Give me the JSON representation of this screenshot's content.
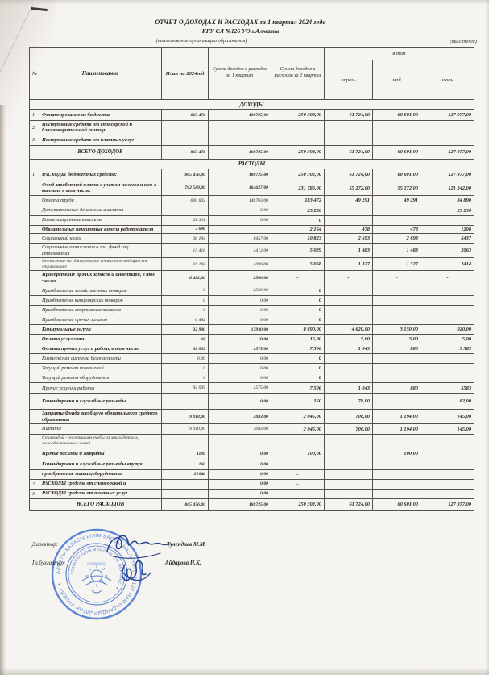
{
  "header": {
    "title": "ОТЧЕТ О ДОХОДАХ И РАСХОДАХ за 1 квартал 2024 года",
    "org": "КГУ СЛ №126 УО г.Алматы",
    "org_caption": "(наименование организации образования)",
    "units_note": "(тыс.тенге)"
  },
  "colors": {
    "paper": "#f6f4f0",
    "ink": "#26241f",
    "stamp_blue": "#4677cf",
    "signature_ink": "#27418e"
  },
  "table": {
    "columns": {
      "num": "№",
      "name": "Наименование",
      "plan": "План на 2024год",
      "q1": "Сумма доходов и расходов за  1 квартал",
      "q2": "Сумма доходов и расходов за  2 квартал",
      "group": "в том",
      "months": [
        "апрель",
        "май",
        "июнь"
      ]
    },
    "rows": [
      {
        "section": "ДОХОДЫ"
      },
      {
        "n": "1",
        "label": "Финансирование из бюджета",
        "b": 1,
        "h": 14,
        "v": [
          "865 476",
          "188725,00",
          "250 302,00",
          "61 724,00",
          "60 601,00",
          "127 977,00"
        ]
      },
      {
        "n": "2",
        "label": "Поступление средств от спонсорской и благотворительной помощи",
        "b": 1,
        "v": [
          "",
          "",
          "",
          "",
          "",
          ""
        ]
      },
      {
        "n": "3",
        "label": "Поступление средств от платных услуг",
        "b": 1,
        "h": 13,
        "v": [
          "",
          "",
          "",
          "",
          "",
          ""
        ]
      },
      {
        "label": "ВСЕГО ДОХОДОВ",
        "b": 1,
        "c": 1,
        "h": 17,
        "v": [
          "865 476",
          "188725,00",
          "250 302,00",
          "61 724,00",
          "60 601,00",
          "127 977,00"
        ]
      },
      {
        "section": "РАСХОДЫ"
      },
      {
        "n": "1",
        "label": "РАСХОДЫ бюджетных средств:",
        "b": 1,
        "h": 15,
        "v": [
          "865 476,00",
          "188725,00",
          "250 302,00",
          "61 724,00",
          "60 601,00",
          "127 977,00"
        ]
      },
      {
        "label": "Фонд заработной платы с учетом налогов и ком-х выплат, в том числе:",
        "b": 1,
        "v": [
          "702 589,00",
          "164627,00",
          "231 786,00",
          "55 272,00",
          "55 272,00",
          "121 242,00"
        ]
      },
      {
        "label": "Оплата труда",
        "h": 13,
        "v": [
          "600 602",
          "146703,00",
          "183 472",
          "49 291",
          "49 291",
          "84 890"
        ]
      },
      {
        "label": "Дополнительные денежные выплаты",
        "h": 12,
        "v": [
          "",
          "0,00",
          "25 230",
          "",
          "",
          "25 230"
        ]
      },
      {
        "label": "Компенсационные выплаты",
        "h": 12,
        "v": [
          "28 311",
          "0,00",
          "0",
          "",
          "",
          ""
        ]
      },
      {
        "label": "Обязательные пенсионные взносы работодателя",
        "b": 1,
        "v": [
          "3 696",
          "",
          "2 164",
          "478",
          "478",
          "1208"
        ]
      },
      {
        "label": "Социальный налог",
        "h": 12,
        "v": [
          "36 194",
          "8457,00",
          "10 823",
          "2 693",
          "2 693",
          "5437"
        ]
      },
      {
        "label": "Социальные отчисления в гос. фонд соц. страхования",
        "v": [
          "15 418",
          "4412,00",
          "5 029",
          "1 483",
          "1 483",
          "2063"
        ]
      },
      {
        "label": "Отчисление на обязательное социальное медицинское страхование",
        "sm": 1,
        "v": [
          "16 168",
          "4099,00",
          "5 068",
          "1 327",
          "1 327",
          "2414"
        ]
      },
      {
        "label": "Приобретение прочих запасов и инвентаря, в том числе:",
        "b": 1,
        "v": [
          "6 482,00",
          "2500,00",
          "-",
          "-",
          "-",
          "-"
        ]
      },
      {
        "label": "Приобретение хозяйственных товаров",
        "h": 13,
        "v": [
          "0",
          "2500,00",
          "0",
          "",
          "",
          ""
        ]
      },
      {
        "label": "Приобретение канцелярских товаров",
        "h": 12,
        "v": [
          "0",
          "0,00",
          "0",
          "",
          "",
          ""
        ]
      },
      {
        "label": "Приобретение спортивных товаров",
        "h": 12,
        "v": [
          "0",
          "0,00",
          "0",
          "",
          "",
          ""
        ]
      },
      {
        "label": "Приобретение прочих запасов",
        "h": 12,
        "v": [
          "6 482",
          "0,00",
          "0",
          "",
          "",
          ""
        ]
      },
      {
        "label": "Коммунальные услуги",
        "b": 1,
        "h": 12,
        "v": [
          "32 990",
          "17930,00",
          "8 690,00",
          "4 620,00",
          "3 150,00",
          "920,00"
        ]
      },
      {
        "label": "Оплата услуг связи",
        "b": 1,
        "h": 12,
        "v": [
          "68",
          "10,00",
          "15,00",
          "5,00",
          "5,00",
          "5,00"
        ]
      },
      {
        "label": "Оплата прочих услуг и работ, в том числе:",
        "b": 1,
        "h": 12,
        "v": [
          "92 039",
          "1575,00",
          "7 506",
          "1 043",
          "880",
          "5 583"
        ]
      },
      {
        "label": "Комплексная система безопасности",
        "h": 12,
        "v": [
          "0,00",
          "0,00",
          "0",
          "",
          "",
          ""
        ]
      },
      {
        "label": "Текущий ремонт помещений",
        "h": 12,
        "v": [
          "0",
          "0,00",
          "0",
          "",
          "",
          ""
        ]
      },
      {
        "label": "Текущий ремонт оборудования",
        "h": 12,
        "v": [
          "0",
          "0,00",
          "0",
          "",
          "",
          ""
        ]
      },
      {
        "label": "Прочие услуги и работы",
        "h": 13,
        "v": [
          "92 039",
          "1575,00",
          "7 506",
          "1 043",
          "880",
          "5583"
        ]
      },
      {
        "label": "Командировки и служебные разъезды",
        "b": 1,
        "h": 20,
        "v": [
          "",
          "0,00",
          "160",
          "78,00",
          "",
          "82,00"
        ]
      },
      {
        "label": "Затраты Фонда всеобщего обязательного среднего образования",
        "b": 1,
        "v": [
          "9 010,00",
          "2083,00",
          "2 045,00",
          "706,00",
          "1 194,00",
          "145,00"
        ]
      },
      {
        "label": "Питание",
        "h": 13,
        "v": [
          "9 010,00",
          "2083,00",
          "2 045,00",
          "706,00",
          "1 194,00",
          "145,00"
        ]
      },
      {
        "label": "Стипендий - отличникам учебы из многодетных, малообеспеченных семей",
        "sm": 1,
        "v": [
          "",
          "",
          "",
          "",
          "",
          ""
        ]
      },
      {
        "label": "Прочие расходы и затраты",
        "b": 1,
        "h": 15,
        "v": [
          "1100",
          "0,00",
          "100,00",
          "",
          "100,00",
          ""
        ]
      },
      {
        "label": "Командировки и служебные разъезды внутри",
        "b": 1,
        "h": 12,
        "v": [
          "160",
          "0,00",
          "-",
          "",
          "",
          ""
        ]
      },
      {
        "label": "приобретение машин,оборудования",
        "b": 1,
        "h": 12,
        "v": [
          "21046",
          "0,00",
          "-",
          "",
          "",
          ""
        ]
      },
      {
        "n": "2",
        "label": "РАСХОДЫ средств от спонсорской и",
        "b": 1,
        "h": 12,
        "v": [
          "",
          "0,00",
          "-",
          "",
          "",
          ""
        ]
      },
      {
        "n": "3",
        "label": "РАСХОДЫ  средств от платных услуг",
        "b": 1,
        "h": 12,
        "v": [
          "",
          "0,00",
          "-",
          "",
          "",
          ""
        ]
      },
      {
        "label": "ВСЕГО РАСХОДОВ",
        "b": 1,
        "c": 1,
        "h": 15,
        "v": [
          "865 476,00",
          "188725,00",
          "250 302,00",
          "61 724,00",
          "60 601,00",
          "127 977,00"
        ]
      }
    ]
  },
  "footer": {
    "director_label": "Директор:",
    "director_name": "Тулендиев М.М.",
    "accountant_label": "Гл.бухгалтер:",
    "accountant_name": "Айдарова Н.К.",
    "stamp": {
      "outer_text": "АЛМАТЫ ҚАЛАСЫ БІЛІМ БАСҚАРМАСЫНЫҢ «№126 МАМАНДАНДЫРЫЛҒАН ЛИЦЕЙ»",
      "inner_text": "КОММУНАЛДЫҚ МЕМЛЕКЕТТІК МЕКЕМЕСІ",
      "center_text": "БСН 990440003"
    }
  }
}
